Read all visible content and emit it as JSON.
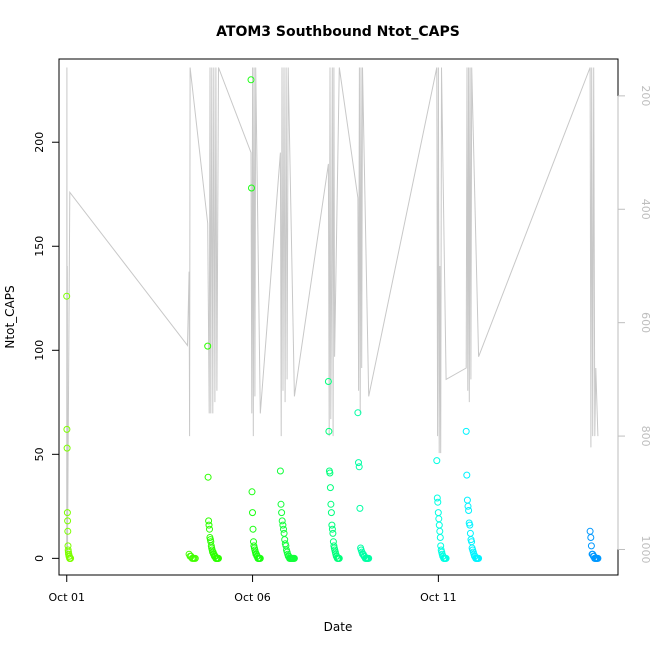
{
  "chart_data": {
    "type": "scatter",
    "title": "ATOM3 Southbound Ntot_CAPS",
    "xlabel": "Date",
    "ylabel": "Ntot_CAPS",
    "xlim": [
      "2016-09-30T19:00",
      "2016-10-15T20:00"
    ],
    "ylim": [
      -8,
      240
    ],
    "x_ticks": [
      {
        "label": "Oct 01",
        "date": "2016-10-01"
      },
      {
        "label": "Oct 06",
        "date": "2016-10-06"
      },
      {
        "label": "Oct 11",
        "date": "2016-10-11"
      }
    ],
    "y_ticks": [
      0,
      50,
      100,
      150,
      200
    ],
    "secondary_axis": {
      "label": "",
      "ticks": [
        200,
        400,
        600,
        800,
        1000
      ],
      "range": [
        135,
        1045
      ],
      "reversed": true,
      "color": "#bebebe",
      "profile_color": "#c8c8c8"
    },
    "flights": [
      {
        "start": "2016-10-01T00:00",
        "end": "2016-10-01T02:30",
        "color": "#7dff00",
        "values": [
          126,
          62,
          53,
          22,
          18,
          13,
          6,
          4,
          3,
          2,
          2,
          1,
          1,
          1,
          0,
          0,
          0,
          0,
          0,
          0
        ]
      },
      {
        "start": "2016-10-04T07:00",
        "end": "2016-10-04T11:00",
        "color": "#42ff00",
        "values": [
          2,
          1,
          1,
          0,
          0,
          0,
          0
        ]
      },
      {
        "start": "2016-10-04T19:00",
        "end": "2016-10-05T02:00",
        "color": "#2dff00",
        "values": [
          102,
          39,
          18,
          16,
          14,
          10,
          9,
          8,
          6,
          5,
          4,
          3,
          3,
          2,
          2,
          1,
          1,
          1,
          0,
          0,
          0,
          0,
          0,
          0,
          0
        ]
      },
      {
        "start": "2016-10-05T23:00",
        "end": "2016-10-06T05:00",
        "color": "#1bff12",
        "values": [
          230,
          178,
          32,
          22,
          14,
          8,
          6,
          5,
          4,
          3,
          2,
          2,
          1,
          1,
          0,
          0,
          0,
          0,
          0,
          0
        ]
      },
      {
        "start": "2016-10-06T18:00",
        "end": "2016-10-07T03:00",
        "color": "#12ff3a",
        "values": [
          42,
          26,
          22,
          18,
          16,
          14,
          12,
          9,
          7,
          6,
          4,
          3,
          2,
          1,
          1,
          0,
          0,
          0,
          0,
          0,
          0,
          0,
          0,
          0
        ]
      },
      {
        "start": "2016-10-08T01:00",
        "end": "2016-10-08T08:00",
        "color": "#00ff7c",
        "values": [
          85,
          61,
          42,
          41,
          34,
          26,
          22,
          16,
          14,
          12,
          8,
          6,
          5,
          4,
          3,
          2,
          1,
          1,
          0,
          0,
          0,
          0,
          0
        ]
      },
      {
        "start": "2016-10-08T20:00",
        "end": "2016-10-09T03:00",
        "color": "#00ffa4",
        "values": [
          70,
          46,
          44,
          24,
          5,
          4,
          3,
          2,
          2,
          1,
          1,
          0,
          0,
          0,
          0,
          0,
          0
        ]
      },
      {
        "start": "2016-10-10T23:00",
        "end": "2016-10-11T05:00",
        "color": "#00ffe3",
        "values": [
          47,
          29,
          27,
          22,
          19,
          16,
          13,
          10,
          6,
          4,
          3,
          2,
          1,
          1,
          0,
          0,
          0,
          0,
          0,
          0
        ]
      },
      {
        "start": "2016-10-11T18:00",
        "end": "2016-10-12T02:00",
        "color": "#00f3ff",
        "values": [
          61,
          40,
          28,
          25,
          23,
          17,
          16,
          12,
          9,
          8,
          5,
          4,
          3,
          2,
          1,
          1,
          0,
          0,
          0,
          0,
          0,
          0
        ]
      },
      {
        "start": "2016-10-15T02:00",
        "end": "2016-10-15T07:00",
        "color": "#0098ff",
        "values": [
          13,
          10,
          6,
          2,
          2,
          1,
          1,
          0,
          0,
          0,
          0,
          0,
          0
        ]
      }
    ],
    "pressure_profile": [
      [
        "2016-10-01T00:00",
        1005
      ],
      [
        "2016-10-01T00:05",
        150
      ],
      [
        "2016-10-01T00:12",
        1010
      ],
      [
        "2016-10-01T00:20",
        500
      ],
      [
        "2016-10-01T00:30",
        1005
      ],
      [
        "2016-10-01T02:00",
        370
      ],
      [
        "2016-10-04T06:00",
        640
      ],
      [
        "2016-10-04T07:00",
        510
      ],
      [
        "2016-10-04T07:20",
        800
      ],
      [
        "2016-10-04T07:40",
        150
      ],
      [
        "2016-10-04T19:00",
        425
      ],
      [
        "2016-10-04T20:00",
        760
      ],
      [
        "2016-10-04T20:30",
        150
      ],
      [
        "2016-10-04T21:00",
        760
      ],
      [
        "2016-10-04T21:40",
        150
      ],
      [
        "2016-10-04T22:20",
        760
      ],
      [
        "2016-10-04T23:00",
        150
      ],
      [
        "2016-10-04T23:40",
        740
      ],
      [
        "2016-10-05T00:20",
        150
      ],
      [
        "2016-10-05T01:00",
        720
      ],
      [
        "2016-10-05T02:00",
        150
      ],
      [
        "2016-10-05T23:00",
        300
      ],
      [
        "2016-10-05T23:30",
        760
      ],
      [
        "2016-10-06T00:00",
        150
      ],
      [
        "2016-10-06T00:30",
        800
      ],
      [
        "2016-10-06T01:00",
        150
      ],
      [
        "2016-10-06T01:30",
        730
      ],
      [
        "2016-10-06T02:00",
        150
      ],
      [
        "2016-10-06T05:00",
        760
      ],
      [
        "2016-10-06T18:00",
        300
      ],
      [
        "2016-10-06T18:30",
        800
      ],
      [
        "2016-10-06T19:00",
        150
      ],
      [
        "2016-10-06T19:40",
        720
      ],
      [
        "2016-10-06T20:20",
        150
      ],
      [
        "2016-10-06T21:00",
        740
      ],
      [
        "2016-10-06T21:40",
        150
      ],
      [
        "2016-10-06T22:20",
        700
      ],
      [
        "2016-10-06T23:00",
        150
      ],
      [
        "2016-10-07T03:00",
        730
      ],
      [
        "2016-10-08T01:00",
        320
      ],
      [
        "2016-10-08T01:30",
        800
      ],
      [
        "2016-10-08T02:00",
        150
      ],
      [
        "2016-10-08T02:30",
        770
      ],
      [
        "2016-10-08T03:00",
        560
      ],
      [
        "2016-10-08T03:30",
        150
      ],
      [
        "2016-10-08T04:00",
        800
      ],
      [
        "2016-10-08T04:30",
        150
      ],
      [
        "2016-10-08T05:00",
        660
      ],
      [
        "2016-10-08T08:00",
        150
      ],
      [
        "2016-10-08T20:00",
        380
      ],
      [
        "2016-10-08T20:30",
        720
      ],
      [
        "2016-10-08T21:00",
        150
      ],
      [
        "2016-10-08T21:30",
        760
      ],
      [
        "2016-10-08T22:00",
        150
      ],
      [
        "2016-10-08T22:30",
        680
      ],
      [
        "2016-10-08T23:00",
        150
      ],
      [
        "2016-10-09T03:00",
        730
      ],
      [
        "2016-10-10T23:00",
        150
      ],
      [
        "2016-10-10T23:30",
        800
      ],
      [
        "2016-10-11T00:00",
        150
      ],
      [
        "2016-10-11T00:30",
        830
      ],
      [
        "2016-10-11T01:00",
        500
      ],
      [
        "2016-10-11T01:30",
        830
      ],
      [
        "2016-10-11T02:00",
        150
      ],
      [
        "2016-10-11T05:00",
        700
      ],
      [
        "2016-10-11T18:00",
        680
      ],
      [
        "2016-10-11T18:30",
        150
      ],
      [
        "2016-10-11T19:00",
        720
      ],
      [
        "2016-10-11T19:30",
        150
      ],
      [
        "2016-10-11T20:00",
        740
      ],
      [
        "2016-10-11T20:30",
        150
      ],
      [
        "2016-10-11T21:00",
        700
      ],
      [
        "2016-10-11T21:30",
        150
      ],
      [
        "2016-10-12T02:00",
        660
      ],
      [
        "2016-10-15T02:00",
        150
      ],
      [
        "2016-10-15T02:30",
        820
      ],
      [
        "2016-10-15T03:00",
        150
      ],
      [
        "2016-10-15T03:40",
        800
      ],
      [
        "2016-10-15T04:20",
        150
      ],
      [
        "2016-10-15T05:00",
        800
      ],
      [
        "2016-10-15T05:40",
        680
      ],
      [
        "2016-10-15T07:00",
        800
      ]
    ],
    "grid": false,
    "legend": "none"
  }
}
